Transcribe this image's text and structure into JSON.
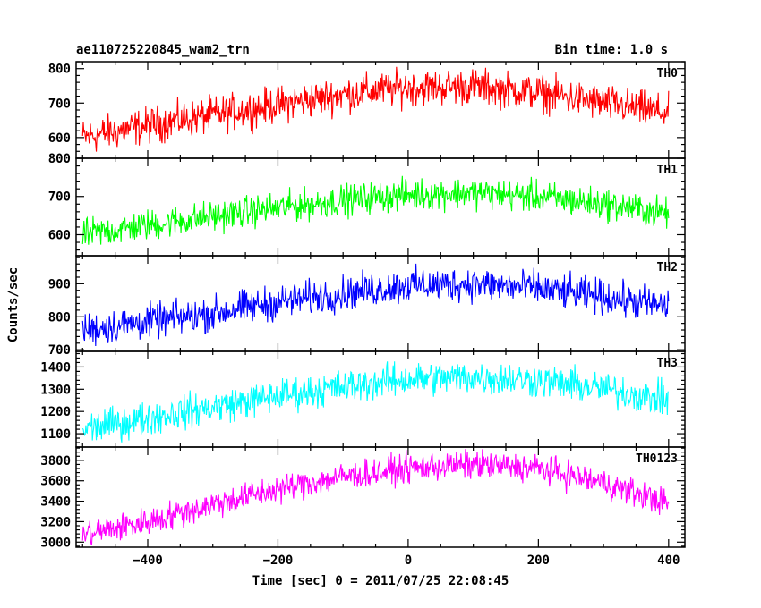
{
  "header": {
    "title": "ae110725220845_wam2_trn",
    "bin_time": "Bin time: 1.0 s"
  },
  "chart_data": {
    "type": "line",
    "title": "ae110725220845_wam2_trn",
    "xlabel": "Time [sec] 0 = 2011/07/25 22:08:45",
    "ylabel": "Counts/sec",
    "xlim": [
      -510,
      425
    ],
    "xticks": [
      -400,
      -200,
      0,
      200,
      400
    ],
    "x_tick_labels": [
      "−400",
      "−200",
      "0",
      "200",
      "400"
    ],
    "bin_time_s": 1.0,
    "panels": [
      {
        "name": "TH0",
        "color": "#ff0000",
        "ylim": [
          540,
          820
        ],
        "yticks": [
          600,
          700,
          800
        ],
        "trend": [
          [
            -500,
            600
          ],
          [
            -400,
            635
          ],
          [
            -300,
            665
          ],
          [
            -200,
            695
          ],
          [
            -100,
            725
          ],
          [
            0,
            745
          ],
          [
            100,
            748
          ],
          [
            200,
            730
          ],
          [
            300,
            700
          ],
          [
            400,
            670
          ]
        ],
        "noise_amplitude": 45
      },
      {
        "name": "TH1",
        "color": "#00ff00",
        "ylim": [
          545,
          800
        ],
        "yticks": [
          600,
          700,
          800
        ],
        "trend": [
          [
            -500,
            600
          ],
          [
            -400,
            625
          ],
          [
            -300,
            648
          ],
          [
            -200,
            670
          ],
          [
            -100,
            690
          ],
          [
            0,
            705
          ],
          [
            100,
            710
          ],
          [
            200,
            700
          ],
          [
            300,
            680
          ],
          [
            400,
            655
          ]
        ],
        "noise_amplitude": 35
      },
      {
        "name": "TH2",
        "color": "#0000ff",
        "ylim": [
          695,
          985
        ],
        "yticks": [
          700,
          800,
          900
        ],
        "trend": [
          [
            -500,
            760
          ],
          [
            -400,
            785
          ],
          [
            -300,
            810
          ],
          [
            -200,
            845
          ],
          [
            -100,
            870
          ],
          [
            0,
            895
          ],
          [
            100,
            900
          ],
          [
            200,
            885
          ],
          [
            300,
            860
          ],
          [
            400,
            830
          ]
        ],
        "noise_amplitude": 45
      },
      {
        "name": "TH3",
        "color": "#00ffff",
        "ylim": [
          1040,
          1470
        ],
        "yticks": [
          1100,
          1200,
          1300,
          1400
        ],
        "trend": [
          [
            -500,
            1120
          ],
          [
            -400,
            1170
          ],
          [
            -300,
            1220
          ],
          [
            -200,
            1270
          ],
          [
            -100,
            1310
          ],
          [
            0,
            1345
          ],
          [
            100,
            1355
          ],
          [
            200,
            1340
          ],
          [
            300,
            1300
          ],
          [
            400,
            1250
          ]
        ],
        "noise_amplitude": 65
      },
      {
        "name": "TH0123",
        "color": "#ff00ff",
        "ylim": [
          2950,
          3930
        ],
        "yticks": [
          3000,
          3200,
          3400,
          3600,
          3800
        ],
        "trend": [
          [
            -500,
            3070
          ],
          [
            -400,
            3200
          ],
          [
            -300,
            3370
          ],
          [
            -200,
            3520
          ],
          [
            -100,
            3640
          ],
          [
            0,
            3720
          ],
          [
            100,
            3760
          ],
          [
            200,
            3720
          ],
          [
            300,
            3580
          ],
          [
            400,
            3380
          ]
        ],
        "noise_amplitude": 120
      }
    ]
  }
}
